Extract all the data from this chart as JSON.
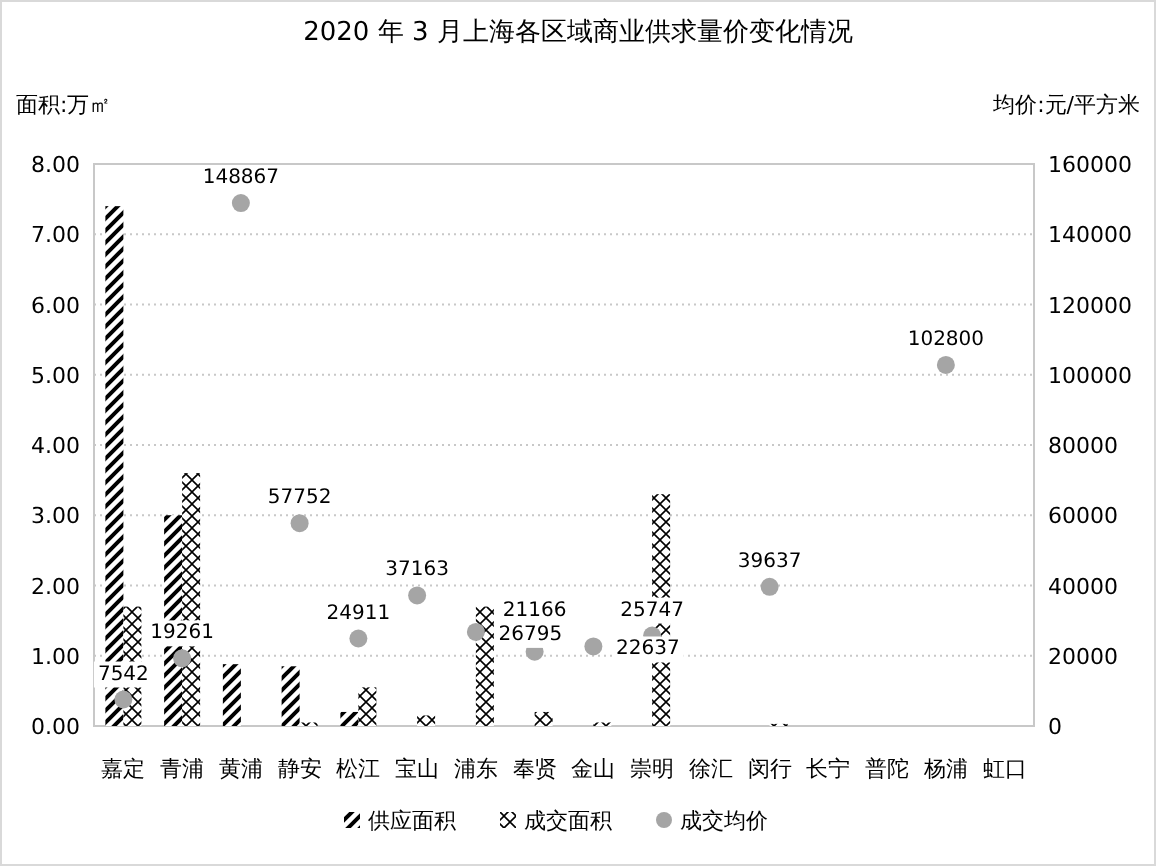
{
  "chart_data": {
    "type": "bar",
    "title": "2020 年 3 月上海各区域商业供求量价变化情况",
    "ylabel": "面积:万㎡",
    "y2label": "均价:元/平方米",
    "categories": [
      "嘉定",
      "青浦",
      "黄浦",
      "静安",
      "松江",
      "宝山",
      "浦东",
      "奉贤",
      "金山",
      "崇明",
      "徐汇",
      "闵行",
      "长宁",
      "普陀",
      "杨浦",
      "虹口"
    ],
    "series": [
      {
        "name": "供应面积",
        "color": "#000000",
        "values": [
          7.4,
          3.0,
          0.88,
          0.85,
          0.2,
          null,
          null,
          null,
          null,
          null,
          null,
          null,
          null,
          null,
          null,
          null
        ]
      },
      {
        "name": "成交面积",
        "color": "#000000",
        "values": [
          1.7,
          3.6,
          null,
          0.05,
          0.55,
          0.15,
          1.7,
          0.2,
          0.05,
          3.3,
          null,
          0.03,
          null,
          null,
          null,
          null
        ]
      },
      {
        "name": "成交均价",
        "type": "scatter",
        "axis": "y2",
        "color": "#a5a5a5",
        "marker": "circle",
        "values": [
          7542,
          19261,
          148867,
          57752,
          24911,
          37163,
          26795,
          21166,
          22637,
          25747,
          null,
          39637,
          null,
          null,
          102800,
          null
        ],
        "value_labels": [
          "7542",
          "19261",
          "148867",
          "57752",
          "24911",
          "37163",
          "26795",
          "21166",
          "22637",
          "25747",
          null,
          "39637",
          null,
          null,
          "102800",
          null
        ]
      }
    ],
    "ylim": [
      0,
      8
    ],
    "yticks": [
      {
        "value": 0,
        "label": "0.00"
      },
      {
        "value": 1,
        "label": "1.00"
      },
      {
        "value": 2,
        "label": "2.00"
      },
      {
        "value": 3,
        "label": "3.00"
      },
      {
        "value": 4,
        "label": "4.00"
      },
      {
        "value": 5,
        "label": "5.00"
      },
      {
        "value": 6,
        "label": "6.00"
      },
      {
        "value": 7,
        "label": "7.00"
      },
      {
        "value": 8,
        "label": "8.00"
      }
    ],
    "y2lim": [
      0,
      160000
    ],
    "y2ticks": [
      0,
      20000,
      40000,
      60000,
      80000,
      100000,
      120000,
      140000,
      160000
    ],
    "grid": "y",
    "legend": "bottom"
  }
}
